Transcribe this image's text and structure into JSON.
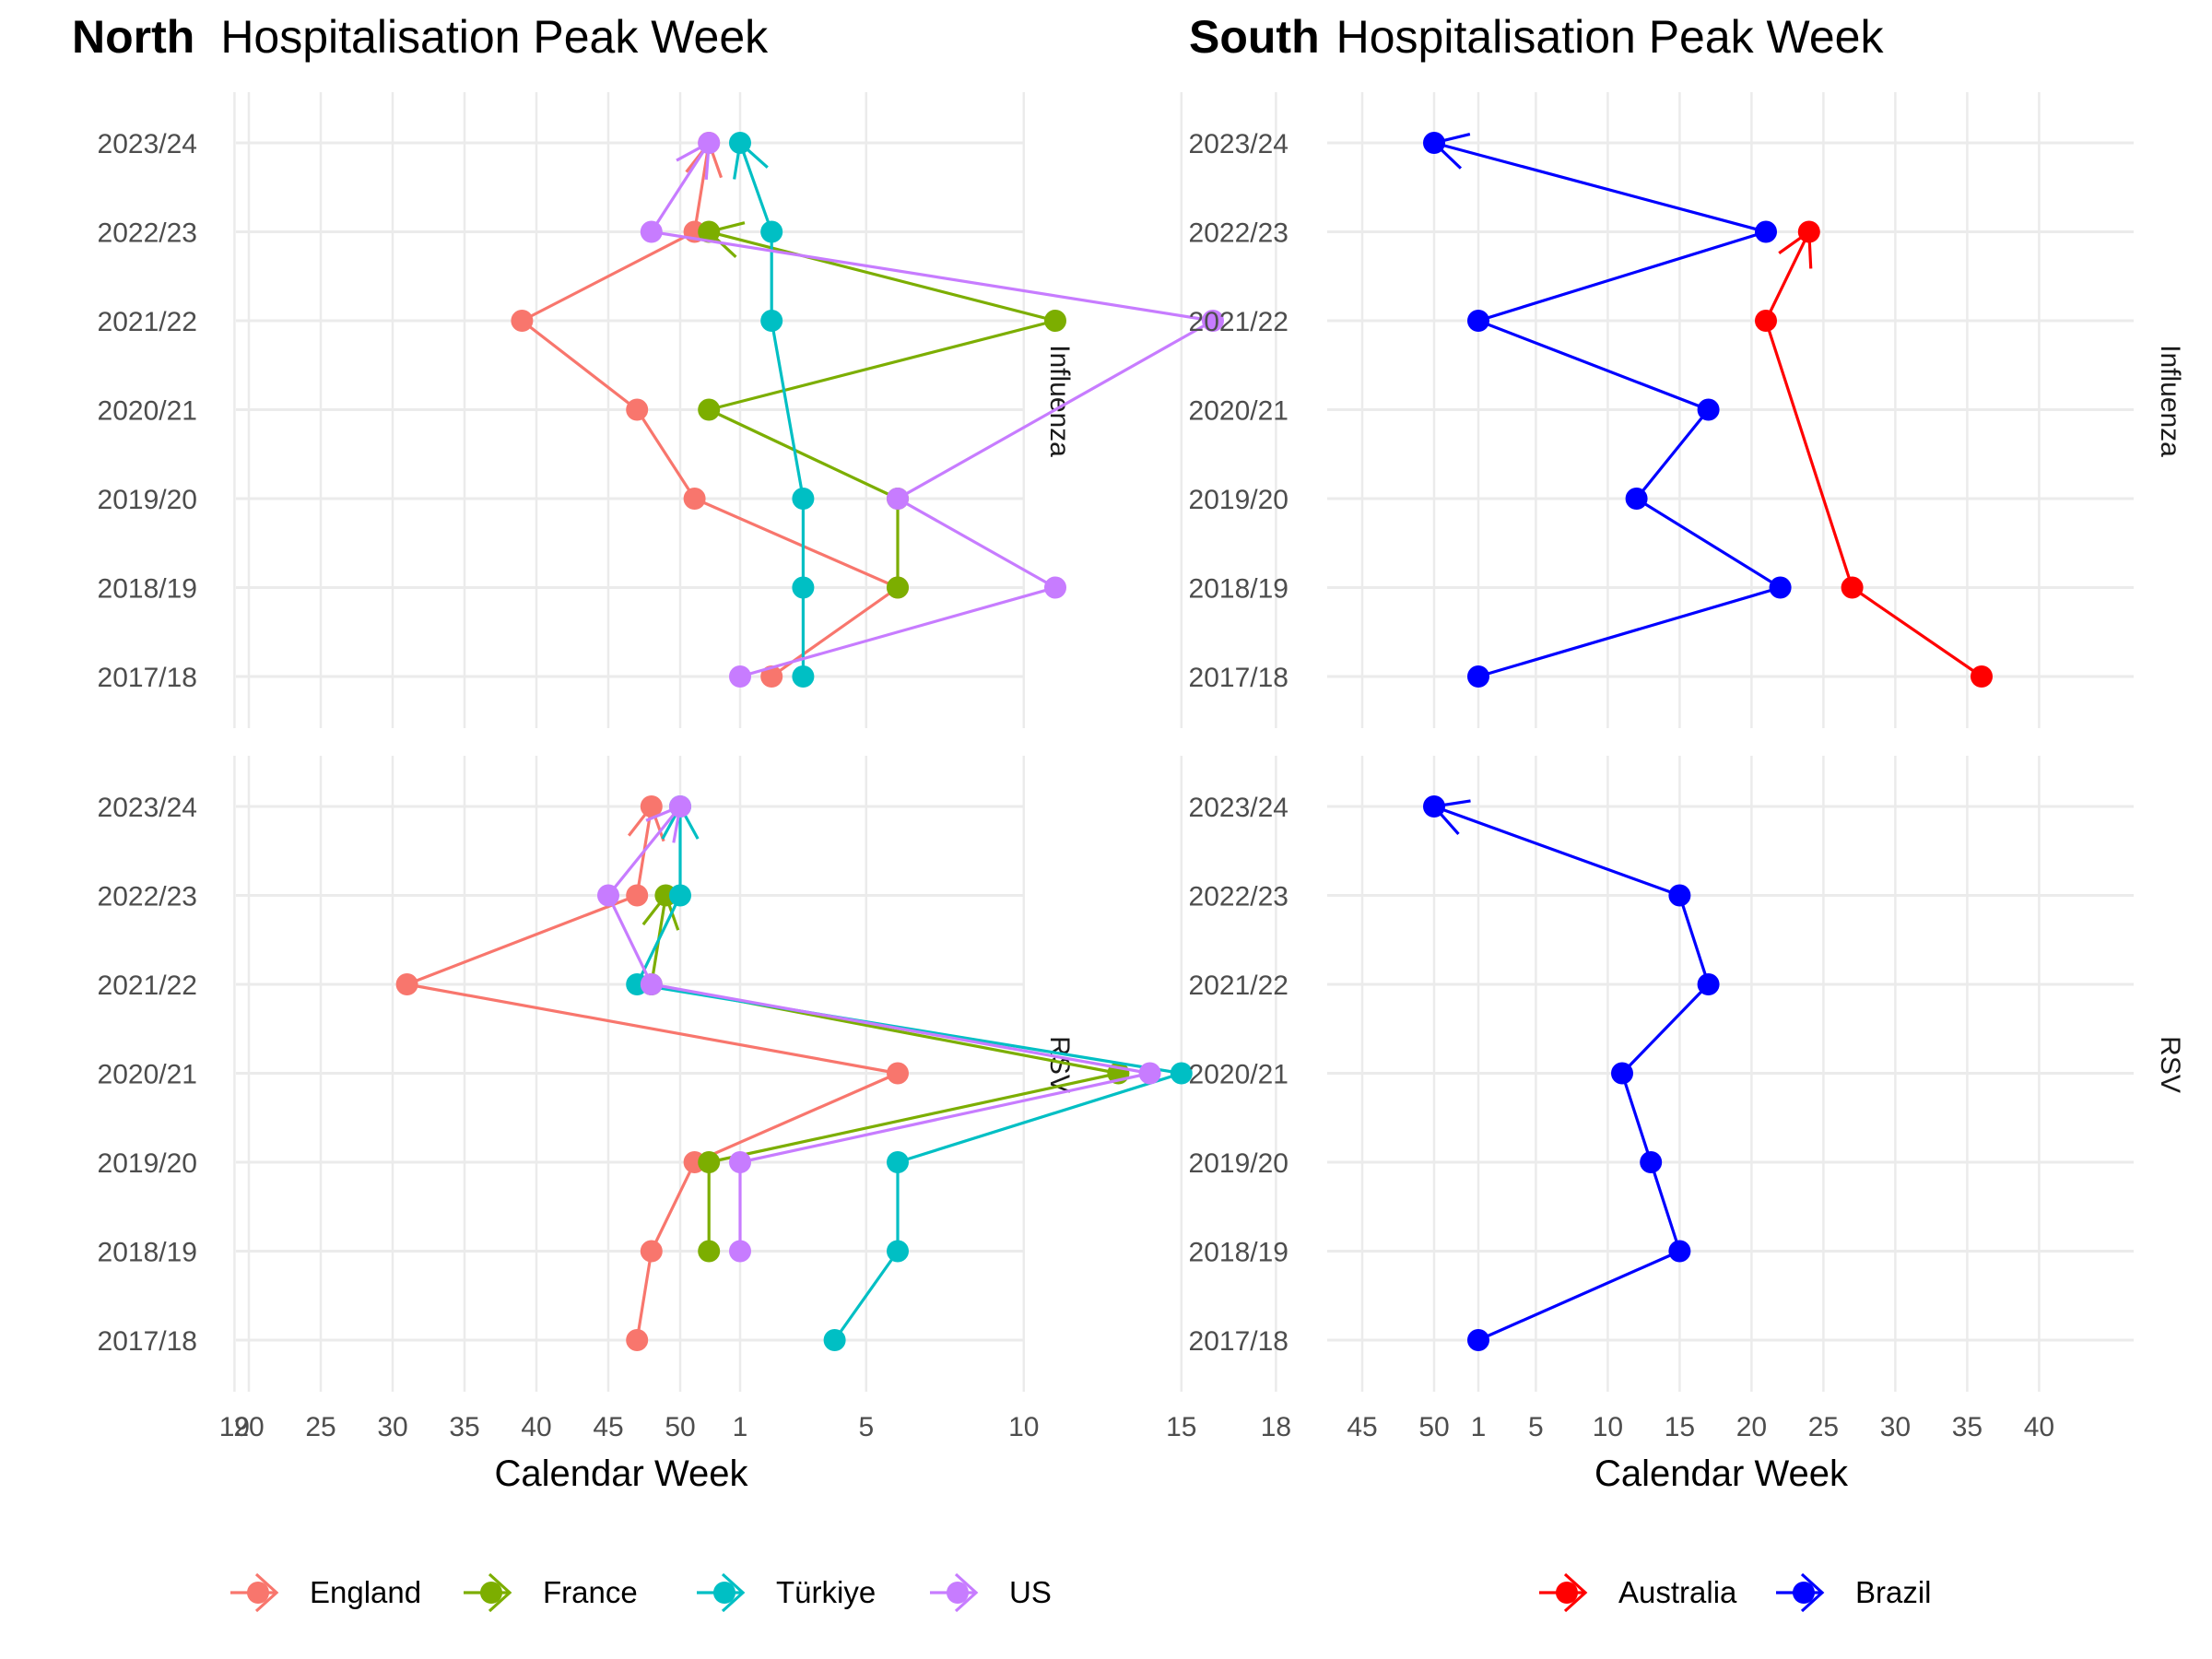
{
  "chart_data": [
    {
      "type": "line",
      "title_bold": "North",
      "title": "Hospitalisation Peak Week",
      "xlabel": "Calendar Week",
      "x_ticks": [
        "19",
        "20",
        "25",
        "30",
        "35",
        "40",
        "45",
        "50",
        "1",
        "5",
        "10",
        "15",
        "18"
      ],
      "seasons": [
        "2017/18",
        "2018/19",
        "2019/20",
        "2020/21",
        "2021/22",
        "2022/23",
        "2023/24"
      ],
      "facets": [
        "Influenza",
        "RSV"
      ],
      "legend": [
        "England",
        "France",
        "Türkiye",
        "US"
      ],
      "colors": {
        "England": "#F8766D",
        "France": "#7CAE00",
        "Türkiye": "#00BFC4",
        "US": "#C77CFF"
      },
      "legend_position": "bottom",
      "series": {
        "Influenza": [
          {
            "name": "England",
            "weeks": [
              2,
              6,
              51,
              47,
              39,
              51,
              52
            ]
          },
          {
            "name": "France",
            "weeks": [
              null,
              6,
              6,
              52,
              11,
              52,
              null
            ]
          },
          {
            "name": "Türkiye",
            "weeks": [
              3,
              3,
              3,
              null,
              2,
              2,
              1
            ]
          },
          {
            "name": "US",
            "weeks": [
              1,
              11,
              6,
              null,
              16,
              48,
              52
            ]
          }
        ],
        "RSV": [
          {
            "name": "England",
            "weeks": [
              47,
              48,
              51,
              6,
              31,
              47,
              48
            ]
          },
          {
            "name": "France",
            "weeks": [
              null,
              52,
              52,
              13,
              48,
              49,
              null
            ]
          },
          {
            "name": "Türkiye",
            "weeks": [
              4,
              6,
              6,
              15,
              47,
              50,
              50
            ]
          },
          {
            "name": "US",
            "weeks": [
              null,
              1,
              1,
              14,
              48,
              45,
              50
            ]
          }
        ]
      }
    },
    {
      "type": "line",
      "title_bold": "South",
      "title": "Hospitalisation Peak Week",
      "xlabel": "Calendar Week",
      "x_ticks": [
        "45",
        "50",
        "1",
        "5",
        "10",
        "15",
        "20",
        "25",
        "30",
        "35",
        "40"
      ],
      "seasons": [
        "2017/18",
        "2018/19",
        "2019/20",
        "2020/21",
        "2021/22",
        "2022/23",
        "2023/24"
      ],
      "facets": [
        "Influenza",
        "RSV"
      ],
      "legend": [
        "Australia",
        "Brazil"
      ],
      "colors": {
        "Australia": "#FF0000",
        "Brazil": "#0000FF"
      },
      "legend_position": "bottom",
      "series": {
        "Influenza": [
          {
            "name": "Australia",
            "weeks": [
              36,
              27,
              null,
              null,
              21,
              24,
              null
            ]
          },
          {
            "name": "Brazil",
            "weeks": [
              1,
              22,
              12,
              17,
              1,
              21,
              50
            ]
          }
        ],
        "RSV": [
          {
            "name": "Brazil",
            "weeks": [
              1,
              15,
              13,
              11,
              17,
              15,
              50
            ]
          }
        ]
      }
    }
  ]
}
